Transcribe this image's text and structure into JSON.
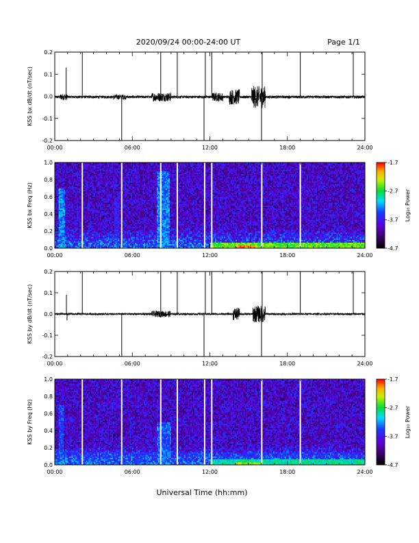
{
  "header": {
    "title": "2020/09/24  00:00-24:00 UT",
    "page": "Page 1/1"
  },
  "xlabel": "Universal Time (hh:mm)",
  "chart_data": [
    {
      "type": "line",
      "ylabel": "KSS bx dB/dt (nT/sec)",
      "ylim": [
        -0.2,
        0.2
      ],
      "yticks": [
        -0.2,
        -0.1,
        0.0,
        0.1,
        0.2
      ],
      "ytick_labels": [
        "-0.2",
        "-0.1",
        "0.0",
        "0.1",
        "0.2"
      ],
      "xlim": [
        0,
        24
      ],
      "xticks": [
        0,
        6,
        12,
        18,
        24
      ],
      "xtick_labels": [
        "00:00",
        "06:00",
        "12:00",
        "18:00",
        "24:00"
      ],
      "color": "#000000",
      "baseline": -0.003,
      "spikes": [
        {
          "t": 0.88,
          "y": 0.13
        },
        {
          "t": 2.13,
          "y": 0.2
        },
        {
          "t": 5.18,
          "y": -0.2
        },
        {
          "t": 8.2,
          "y": 0.2
        },
        {
          "t": 9.48,
          "y": 0.2
        },
        {
          "t": 11.55,
          "y": -0.2
        },
        {
          "t": 11.65,
          "y": 0.2
        },
        {
          "t": 12.15,
          "y": 0.2
        },
        {
          "t": 16.0,
          "y": -0.2
        },
        {
          "t": 16.05,
          "y": 0.2
        },
        {
          "t": 19.0,
          "y": 0.2
        },
        {
          "t": 23.1,
          "y": 0.2
        }
      ],
      "activity": [
        {
          "t0": 0.0,
          "t1": 24.0,
          "amp": 0.006
        },
        {
          "t0": 0.4,
          "t1": 1.0,
          "amp": 0.015
        },
        {
          "t0": 4.5,
          "t1": 5.5,
          "amp": 0.012
        },
        {
          "t0": 7.5,
          "t1": 9.0,
          "amp": 0.02
        },
        {
          "t0": 12.2,
          "t1": 13.0,
          "amp": 0.02
        },
        {
          "t0": 13.5,
          "t1": 14.3,
          "amp": 0.035
        },
        {
          "t0": 15.2,
          "t1": 16.3,
          "amp": 0.05
        }
      ]
    },
    {
      "type": "heatmap",
      "ylabel": "KSS bx Freq (Hz)",
      "ylim": [
        0.0,
        1.0
      ],
      "yticks": [
        0.0,
        0.2,
        0.4,
        0.6,
        0.8,
        1.0
      ],
      "ytick_labels": [
        "0.0",
        "0.2",
        "0.4",
        "0.6",
        "0.8",
        "1.0"
      ],
      "xlim": [
        0,
        24
      ],
      "xticks": [
        0,
        6,
        12,
        18,
        24
      ],
      "xtick_labels": [
        "00:00",
        "06:00",
        "12:00",
        "18:00",
        "24:00"
      ],
      "colorbar": {
        "label": "Log₁₀ Power",
        "range": [
          -4.7,
          -1.7
        ],
        "ticks": [
          -4.7,
          -3.7,
          -2.7,
          -1.7
        ],
        "tick_labels": [
          "-4.7",
          "-3.7",
          "-2.7",
          "-1.7"
        ]
      },
      "gaps": [
        2.13,
        5.18,
        8.2,
        9.48,
        11.6,
        12.15,
        16.02,
        19.0
      ],
      "enhancements": [
        {
          "t0": 0.3,
          "t1": 0.8,
          "fmax": 0.7,
          "level": -3.3
        },
        {
          "t0": 4.6,
          "t1": 5.0,
          "fmax": 0.6,
          "level": -3.7
        },
        {
          "t0": 7.9,
          "t1": 8.9,
          "fmax": 0.9,
          "level": -3.3
        },
        {
          "t0": 12.0,
          "t1": 24.0,
          "fmax": 0.06,
          "level": -2.5
        },
        {
          "t0": 14.0,
          "t1": 15.5,
          "fmax": 0.04,
          "level": -2.0
        }
      ]
    },
    {
      "type": "line",
      "ylabel": "KSS by dB/dt (nT/sec)",
      "ylim": [
        -0.2,
        0.2
      ],
      "yticks": [
        -0.2,
        -0.1,
        0.0,
        0.1,
        0.2
      ],
      "ytick_labels": [
        "-0.2",
        "-0.1",
        "0.0",
        "0.1",
        "0.2"
      ],
      "xlim": [
        0,
        24
      ],
      "xticks": [
        0,
        6,
        12,
        18,
        24
      ],
      "xtick_labels": [
        "00:00",
        "06:00",
        "12:00",
        "18:00",
        "24:00"
      ],
      "color": "#000000",
      "baseline": 0.0,
      "spikes": [
        {
          "t": 0.9,
          "y": 0.09
        },
        {
          "t": 0.95,
          "y": -0.03
        },
        {
          "t": 2.13,
          "y": 0.2
        },
        {
          "t": 5.18,
          "y": -0.2
        },
        {
          "t": 8.2,
          "y": 0.2
        },
        {
          "t": 9.48,
          "y": 0.2
        },
        {
          "t": 11.55,
          "y": -0.2
        },
        {
          "t": 11.65,
          "y": 0.2
        },
        {
          "t": 12.15,
          "y": 0.2
        },
        {
          "t": 16.0,
          "y": -0.2
        },
        {
          "t": 16.05,
          "y": 0.2
        },
        {
          "t": 19.0,
          "y": 0.2
        },
        {
          "t": 23.1,
          "y": 0.2
        }
      ],
      "activity": [
        {
          "t0": 0.0,
          "t1": 24.0,
          "amp": 0.005
        },
        {
          "t0": 7.5,
          "t1": 9.0,
          "amp": 0.015
        },
        {
          "t0": 13.8,
          "t1": 14.3,
          "amp": 0.03
        },
        {
          "t0": 15.3,
          "t1": 16.3,
          "amp": 0.04
        }
      ]
    },
    {
      "type": "heatmap",
      "ylabel": "KSS by Freq (Hz)",
      "ylim": [
        0.0,
        1.0
      ],
      "yticks": [
        0.0,
        0.2,
        0.4,
        0.6,
        0.8,
        1.0
      ],
      "ytick_labels": [
        "0.0",
        "0.2",
        "0.4",
        "0.6",
        "0.8",
        "1.0"
      ],
      "xlim": [
        0,
        24
      ],
      "xticks": [
        0,
        6,
        12,
        18,
        24
      ],
      "xtick_labels": [
        "00:00",
        "06:00",
        "12:00",
        "18:00",
        "24:00"
      ],
      "colorbar": {
        "label": "Log₁₀ Power",
        "range": [
          -4.7,
          -1.7
        ],
        "ticks": [
          -4.7,
          -3.7,
          -2.7,
          -1.7
        ],
        "tick_labels": [
          "-4.7",
          "-3.7",
          "-2.7",
          "-1.7"
        ]
      },
      "gaps": [
        2.13,
        5.18,
        8.2,
        9.48,
        11.6,
        12.15,
        16.02,
        19.0
      ],
      "enhancements": [
        {
          "t0": 0.3,
          "t1": 0.7,
          "fmax": 0.7,
          "level": -3.5
        },
        {
          "t0": 7.9,
          "t1": 9.0,
          "fmax": 0.5,
          "level": -3.4
        },
        {
          "t0": 0.0,
          "t1": 24.0,
          "fmax": 0.15,
          "level": -3.7
        },
        {
          "t0": 12.0,
          "t1": 24.0,
          "fmax": 0.06,
          "level": -2.9
        },
        {
          "t0": 14.0,
          "t1": 16.0,
          "fmax": 0.04,
          "level": -2.4
        }
      ]
    }
  ]
}
